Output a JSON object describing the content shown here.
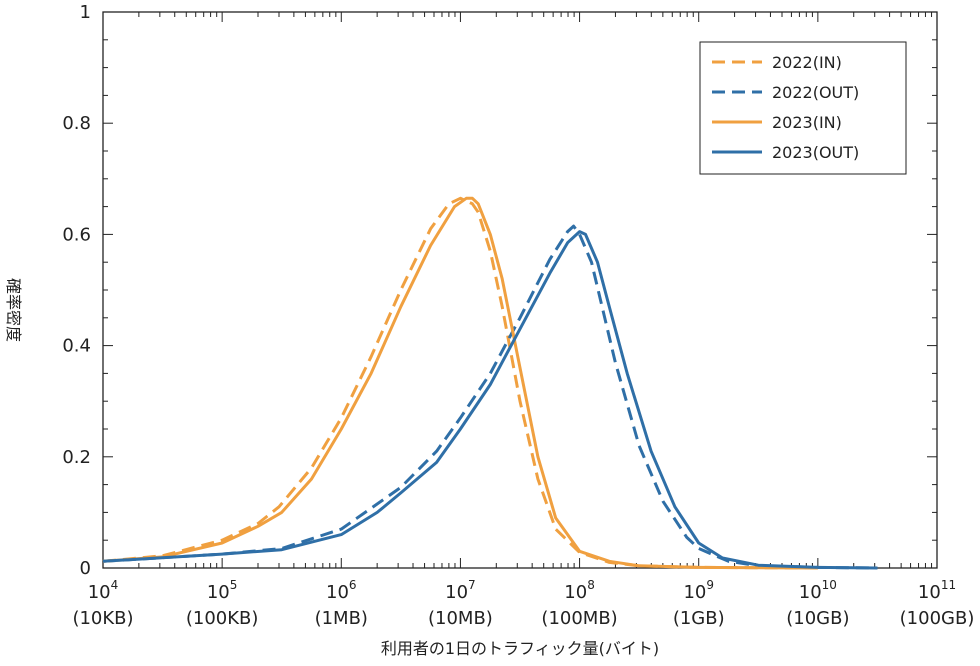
{
  "chart_data": {
    "type": "line",
    "xlabel": "利用者の1日のトラフィック量(バイト)",
    "ylabel": "確率密度",
    "xscale": "log",
    "xlim": [
      10000,
      100000000000
    ],
    "ylim": [
      0,
      1
    ],
    "grid": false,
    "legend_position": "top-right",
    "yticks": [
      {
        "value": 0,
        "label": "0"
      },
      {
        "value": 0.2,
        "label": "0.2"
      },
      {
        "value": 0.4,
        "label": "0.4"
      },
      {
        "value": 0.6,
        "label": "0.6"
      },
      {
        "value": 0.8,
        "label": "0.8"
      },
      {
        "value": 1,
        "label": "1"
      }
    ],
    "xticks": [
      {
        "value": 10000,
        "base": "10",
        "exp": "4",
        "sub": "(10KB)"
      },
      {
        "value": 100000,
        "base": "10",
        "exp": "5",
        "sub": "(100KB)"
      },
      {
        "value": 1000000,
        "base": "10",
        "exp": "6",
        "sub": "(1MB)"
      },
      {
        "value": 10000000,
        "base": "10",
        "exp": "7",
        "sub": "(10MB)"
      },
      {
        "value": 100000000,
        "base": "10",
        "exp": "8",
        "sub": "(100MB)"
      },
      {
        "value": 1000000000,
        "base": "10",
        "exp": "9",
        "sub": "(1GB)"
      },
      {
        "value": 10000000000,
        "base": "10",
        "exp": "10",
        "sub": "(10GB)"
      },
      {
        "value": 100000000000,
        "base": "10",
        "exp": "11",
        "sub": "(100GB)"
      }
    ],
    "series": [
      {
        "name": "2022(IN)",
        "color": "#f0a040",
        "dashed": true,
        "points": [
          [
            10000,
            0.012
          ],
          [
            31600,
            0.022
          ],
          [
            100000,
            0.05
          ],
          [
            200000,
            0.08
          ],
          [
            300000,
            0.11
          ],
          [
            562000,
            0.18
          ],
          [
            1000000,
            0.27
          ],
          [
            1780000,
            0.38
          ],
          [
            3160000,
            0.5
          ],
          [
            5620000,
            0.61
          ],
          [
            8000000,
            0.655
          ],
          [
            10000000,
            0.665
          ],
          [
            12600000,
            0.655
          ],
          [
            14100000,
            0.64
          ],
          [
            17800000,
            0.57
          ],
          [
            22400000,
            0.47
          ],
          [
            31600000,
            0.3
          ],
          [
            44700000,
            0.16
          ],
          [
            63100000,
            0.07
          ],
          [
            100000000,
            0.028
          ],
          [
            178000000,
            0.01
          ],
          [
            316000000,
            0.004
          ],
          [
            1000000000,
            0.001
          ],
          [
            10000000000,
            0
          ]
        ]
      },
      {
        "name": "2022(OUT)",
        "color": "#2f6fa7",
        "dashed": true,
        "points": [
          [
            10000,
            0.012
          ],
          [
            100000,
            0.025
          ],
          [
            316000,
            0.035
          ],
          [
            1000000,
            0.07
          ],
          [
            3160000,
            0.145
          ],
          [
            6310000,
            0.21
          ],
          [
            10000000,
            0.27
          ],
          [
            17800000,
            0.35
          ],
          [
            31600000,
            0.45
          ],
          [
            56200000,
            0.555
          ],
          [
            79400000,
            0.605
          ],
          [
            89100000,
            0.615
          ],
          [
            100000000,
            0.6
          ],
          [
            125900000,
            0.55
          ],
          [
            158500000,
            0.46
          ],
          [
            199500000,
            0.37
          ],
          [
            316000000,
            0.22
          ],
          [
            501000000,
            0.12
          ],
          [
            794000000,
            0.055
          ],
          [
            1000000000,
            0.035
          ],
          [
            1778000000,
            0.012
          ],
          [
            3162000000,
            0.004
          ],
          [
            10000000000,
            0.001
          ],
          [
            31620000000,
            0
          ]
        ]
      },
      {
        "name": "2023(IN)",
        "color": "#f0a040",
        "dashed": false,
        "points": [
          [
            10000,
            0.012
          ],
          [
            31600,
            0.02
          ],
          [
            100000,
            0.045
          ],
          [
            200000,
            0.075
          ],
          [
            316000,
            0.1
          ],
          [
            562000,
            0.16
          ],
          [
            1000000,
            0.25
          ],
          [
            1780000,
            0.35
          ],
          [
            3160000,
            0.47
          ],
          [
            5620000,
            0.58
          ],
          [
            8910000,
            0.65
          ],
          [
            11200000,
            0.665
          ],
          [
            12600000,
            0.665
          ],
          [
            14100000,
            0.655
          ],
          [
            17800000,
            0.6
          ],
          [
            22400000,
            0.52
          ],
          [
            31600000,
            0.36
          ],
          [
            44700000,
            0.2
          ],
          [
            63100000,
            0.09
          ],
          [
            100000000,
            0.03
          ],
          [
            178000000,
            0.012
          ],
          [
            316000000,
            0.004
          ],
          [
            1000000000,
            0.001
          ],
          [
            10000000000,
            0
          ]
        ]
      },
      {
        "name": "2023(OUT)",
        "color": "#2f6fa7",
        "dashed": false,
        "points": [
          [
            10000,
            0.012
          ],
          [
            100000,
            0.025
          ],
          [
            316000,
            0.033
          ],
          [
            1000000,
            0.06
          ],
          [
            2000000,
            0.1
          ],
          [
            3160000,
            0.135
          ],
          [
            6310000,
            0.19
          ],
          [
            10000000,
            0.25
          ],
          [
            17800000,
            0.33
          ],
          [
            31600000,
            0.43
          ],
          [
            56200000,
            0.53
          ],
          [
            79400000,
            0.585
          ],
          [
            100000000,
            0.605
          ],
          [
            112200000,
            0.6
          ],
          [
            141300000,
            0.55
          ],
          [
            177800000,
            0.47
          ],
          [
            251200000,
            0.35
          ],
          [
            398100000,
            0.21
          ],
          [
            631000000,
            0.11
          ],
          [
            1000000000,
            0.045
          ],
          [
            1585000000,
            0.018
          ],
          [
            3162000000,
            0.005
          ],
          [
            10000000000,
            0.001
          ],
          [
            31620000000,
            0
          ]
        ]
      }
    ]
  }
}
